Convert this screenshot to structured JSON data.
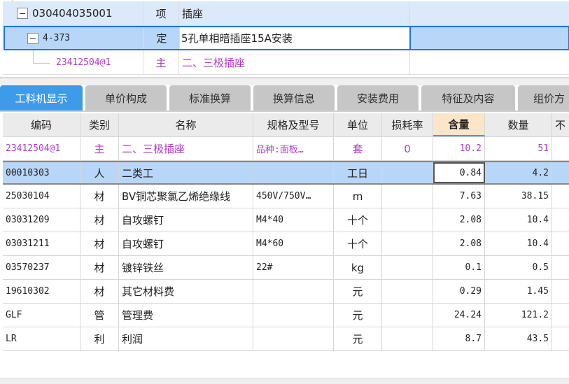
{
  "tree": [
    {
      "code": "030404035001",
      "type": "项",
      "name": "插座",
      "level": 0
    },
    {
      "code": "4-373",
      "type": "定",
      "name": "5孔单相暗插座15A安装",
      "level": 1
    },
    {
      "code": "23412504@1",
      "type": "主",
      "name": "二、三极插座",
      "level": 2
    }
  ],
  "tabs": [
    "工料机显示",
    "单价构成",
    "标准换算",
    "换算信息",
    "安装费用",
    "特征及内容",
    "组价方"
  ],
  "columns": [
    "编码",
    "类别",
    "名称",
    "规格及型号",
    "单位",
    "损耗率",
    "含量",
    "数量",
    "不"
  ],
  "rows": [
    [
      "23412504@1",
      "主",
      "二、三极插座",
      "品种:面板…",
      "套",
      "0",
      "10.2",
      "51"
    ],
    [
      "00010303",
      "人",
      "二类工",
      "",
      "工日",
      "",
      "0.84",
      "4.2"
    ],
    [
      "25030104",
      "材",
      "BV铜芯聚氯乙烯绝缘线",
      "450V/750V…",
      "m",
      "",
      "7.63",
      "38.15"
    ],
    [
      "03031209",
      "材",
      "自攻螺钉",
      "M4*40",
      "十个",
      "",
      "2.08",
      "10.4"
    ],
    [
      "03031211",
      "材",
      "自攻螺钉",
      "M4*60",
      "十个",
      "",
      "2.08",
      "10.4"
    ],
    [
      "03570237",
      "材",
      "镀锌铁丝",
      "22#",
      "kg",
      "",
      "0.1",
      "0.5"
    ],
    [
      "19610302",
      "材",
      "其它材料费",
      "",
      "元",
      "",
      "0.29",
      "1.45"
    ],
    [
      "GLF",
      "管",
      "管理费",
      "",
      "元",
      "",
      "24.24",
      "121.2"
    ],
    [
      "LR",
      "利",
      "利润",
      "",
      "元",
      "",
      "8.7",
      "43.5"
    ]
  ],
  "colors": {
    "accent": "#3d9be9",
    "selected": "#b8d6f8",
    "main_material": "#b03cc8",
    "sorted_header": "#fde6c8"
  }
}
